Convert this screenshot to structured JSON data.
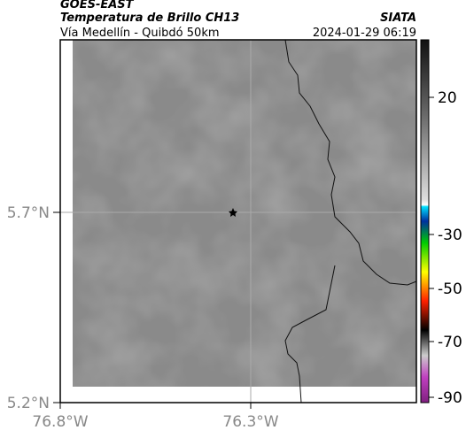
{
  "header": {
    "product": "GOES-EAST",
    "title": "Temperatura de Brillo CH13",
    "source": "SIATA",
    "subtitle": "Vía Medellín - Quibdó 50km",
    "datetime": "2024-01-29 06:19"
  },
  "axes": {
    "lat_labels": [
      "5.7°N",
      "5.2°N"
    ],
    "lon_labels": [
      "76.8°W",
      "76.3°W"
    ]
  },
  "colorbar": {
    "tick_labels": [
      "20",
      "-30",
      "-50",
      "-70",
      "-90"
    ]
  }
}
